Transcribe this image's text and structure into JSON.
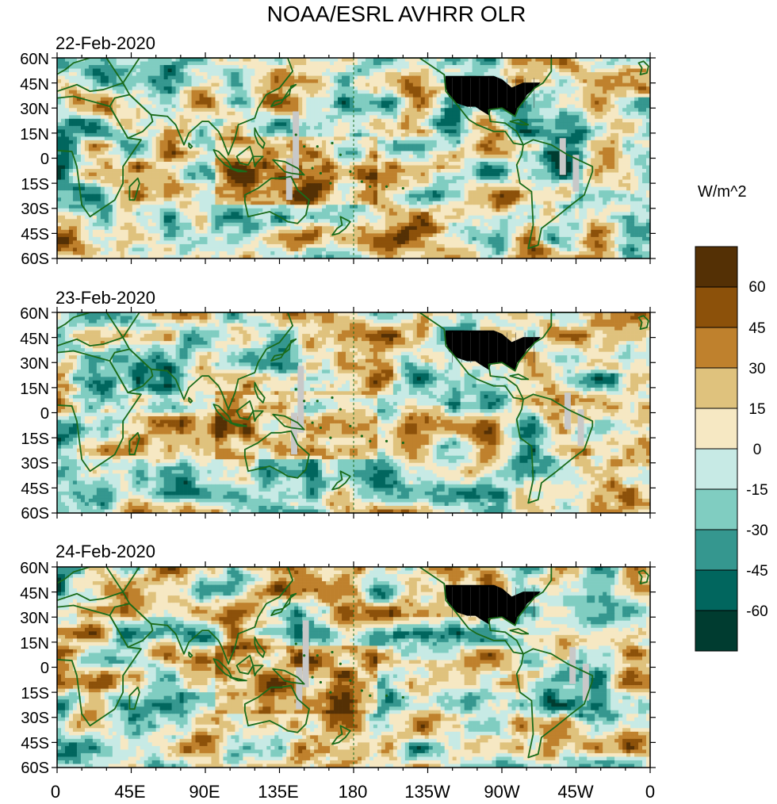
{
  "title": "NOAA/ESRL AVHRR OLR",
  "panels": [
    {
      "date": "22-Feb-2020",
      "seed": 11
    },
    {
      "date": "23-Feb-2020",
      "seed": 23
    },
    {
      "date": "24-Feb-2020",
      "seed": 37
    }
  ],
  "lat_labels": [
    "60N",
    "45N",
    "30N",
    "15N",
    "0",
    "15S",
    "30S",
    "45S",
    "60S"
  ],
  "lon_labels": [
    "0",
    "45E",
    "90E",
    "135E",
    "180",
    "135W",
    "90W",
    "45W",
    "0"
  ],
  "colorbar": {
    "unit": "W/m^2",
    "labels": [
      "60",
      "45",
      "30",
      "15",
      "0",
      "-15",
      "-30",
      "-45",
      "-60"
    ],
    "colors": [
      "#543005",
      "#8c510a",
      "#bf812d",
      "#dfc27d",
      "#f6e8c3",
      "#c7eae5",
      "#80cdc1",
      "#35978f",
      "#01665e",
      "#003c30"
    ]
  },
  "colors": {
    "coastline": "#1a6b1a",
    "missing": "#c8c8c8",
    "us_states": "#000000"
  }
}
